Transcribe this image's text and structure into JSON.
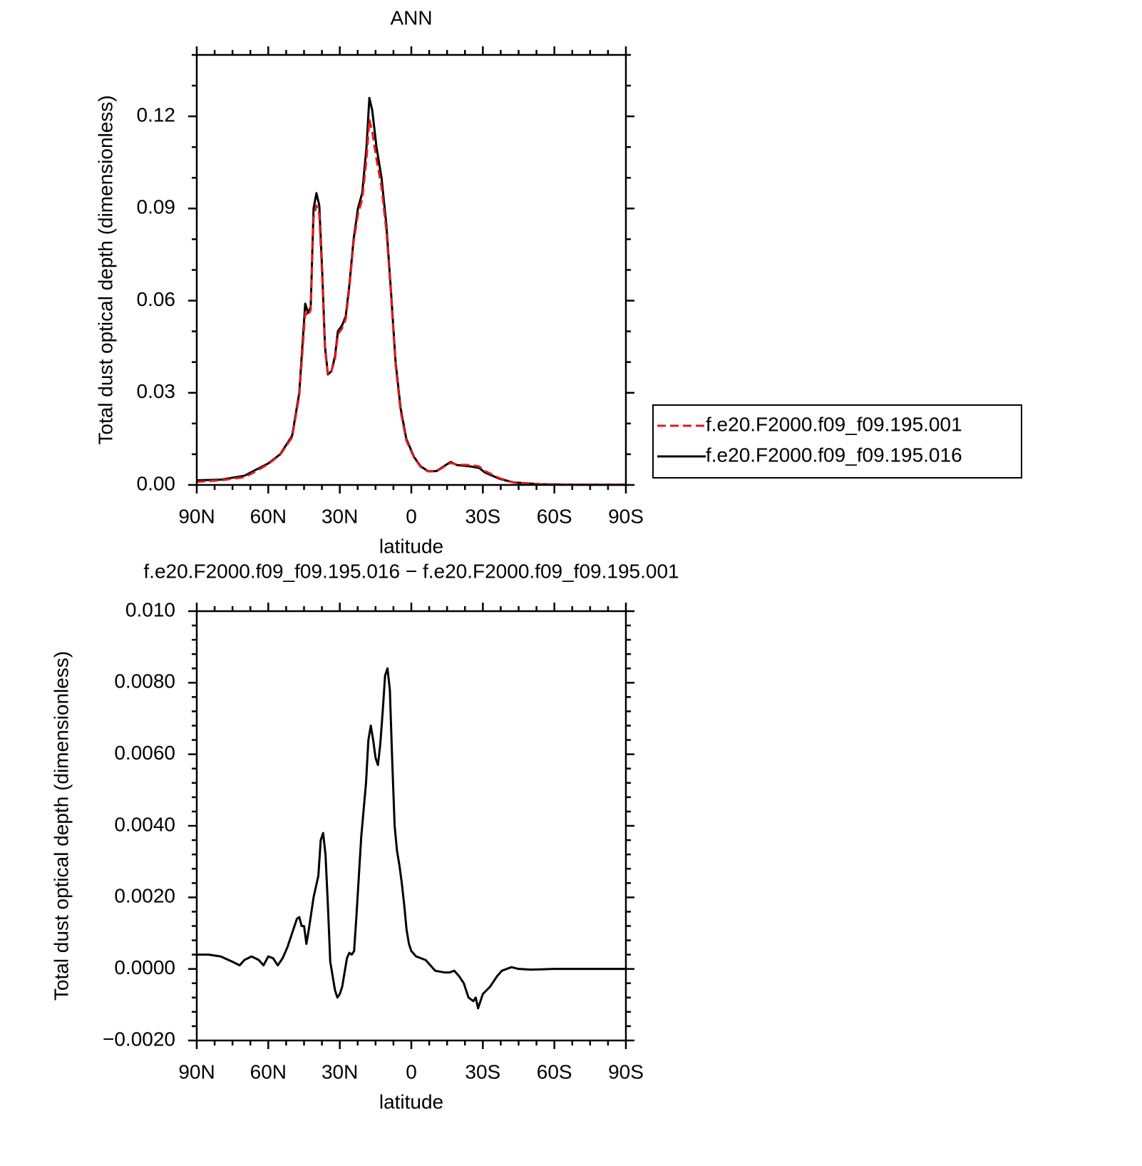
{
  "chart_data": [
    {
      "type": "line",
      "title": "ANN",
      "xlabel": "latitude",
      "ylabel": "Total dust optical depth (dimensionless)",
      "x": [
        90,
        80,
        70,
        65,
        60,
        55,
        50,
        47,
        44.5,
        43.3,
        42.2,
        41,
        39.8,
        38.6,
        37.4,
        36.2,
        35,
        33.5,
        32,
        30.8,
        29,
        27.5,
        26,
        24.2,
        22.4,
        20.6,
        18.8,
        17.6,
        16.4,
        14.6,
        12.5,
        10.5,
        8.7,
        6.6,
        4.5,
        2.1,
        -1.2,
        -4,
        -7,
        -10.5,
        -13.5,
        -16.5,
        -19,
        -25,
        -28.5,
        -31,
        -37,
        -43,
        -55,
        -70,
        -90
      ],
      "series": [
        {
          "name": "f.e20.F2000.f09_f09.195.001",
          "color": "#e41a1c",
          "dash": true,
          "values": [
            0.001,
            0.0015,
            0.0025,
            0.0045,
            0.0068,
            0.0098,
            0.0155,
            0.029,
            0.056,
            0.055,
            0.057,
            0.087,
            0.091,
            0.088,
            0.068,
            0.044,
            0.036,
            0.037,
            0.041,
            0.049,
            0.051,
            0.054,
            0.064,
            0.079,
            0.088,
            0.093,
            0.106,
            0.119,
            0.115,
            0.106,
            0.097,
            0.083,
            0.064,
            0.039,
            0.024,
            0.0145,
            0.0088,
            0.0058,
            0.0044,
            0.0044,
            0.0058,
            0.0072,
            0.0066,
            0.0065,
            0.006,
            0.0045,
            0.0022,
            0.0008,
            0.0002,
            0.0001,
            0.0001
          ]
        },
        {
          "name": "f.e20.F2000.f09_f09.195.016",
          "color": "#000000",
          "dash": false,
          "values": [
            0.0015,
            0.0017,
            0.003,
            0.005,
            0.007,
            0.01,
            0.016,
            0.03,
            0.059,
            0.056,
            0.058,
            0.09,
            0.095,
            0.091,
            0.07,
            0.045,
            0.036,
            0.037,
            0.042,
            0.05,
            0.052,
            0.055,
            0.065,
            0.08,
            0.09,
            0.095,
            0.11,
            0.126,
            0.122,
            0.11,
            0.1,
            0.085,
            0.065,
            0.04,
            0.025,
            0.015,
            0.009,
            0.006,
            0.0045,
            0.0045,
            0.006,
            0.0075,
            0.0065,
            0.006,
            0.0055,
            0.004,
            0.002,
            0.0008,
            0.0002,
            0.0001,
            0.0001
          ]
        }
      ],
      "xlim": [
        90,
        -90
      ],
      "xticks": [
        {
          "value": 90,
          "label": "90N"
        },
        {
          "value": 60,
          "label": "60N"
        },
        {
          "value": 30,
          "label": "30N"
        },
        0,
        {
          "value": -30,
          "label": "30S"
        },
        {
          "value": -60,
          "label": "60S"
        },
        {
          "value": -90,
          "label": "90S"
        }
      ],
      "ylim": [
        0,
        0.14
      ],
      "yticks": [
        {
          "value": 0,
          "label": "0.00"
        },
        0.03,
        0.06,
        0.09,
        0.12
      ],
      "legend": "right"
    },
    {
      "type": "line",
      "title": "f.e20.F2000.f09_f09.195.016 − f.e20.F2000.f09_f09.195.001",
      "xlabel": "latitude",
      "ylabel": "Total dust optical depth (dimensionless)",
      "x": [
        90,
        85,
        80,
        75,
        72,
        70,
        67,
        64,
        62,
        60,
        58,
        56,
        54,
        52,
        50,
        48,
        47,
        46,
        45,
        44,
        43,
        41,
        39,
        38,
        37,
        36,
        35,
        34,
        33,
        32,
        31,
        30,
        29,
        28,
        27,
        26,
        25,
        24,
        23,
        22,
        21,
        19,
        18,
        17,
        16,
        15,
        14,
        13,
        12,
        11,
        10,
        9,
        8,
        7,
        6,
        5,
        4,
        3,
        2,
        1,
        0,
        -2,
        -4,
        -6,
        -8,
        -10,
        -14,
        -16,
        -18,
        -20,
        -22,
        -24,
        -26,
        -27,
        -28,
        -30,
        -33,
        -36,
        -38,
        -40,
        -42,
        -45,
        -50,
        -60,
        -90
      ],
      "values": [
        0.0004,
        0.0004,
        0.00035,
        0.0002,
        0.0001,
        0.00025,
        0.00035,
        0.00025,
        0.0001,
        0.00035,
        0.0003,
        0.0001,
        0.0003,
        0.0006,
        0.001,
        0.0014,
        0.00145,
        0.0012,
        0.0012,
        0.0007,
        0.0011,
        0.002,
        0.0026,
        0.0036,
        0.0038,
        0.0032,
        0.0018,
        0.0002,
        -0.0002,
        -0.0006,
        -0.0008,
        -0.0007,
        -0.0005,
        -0.0001,
        0.0003,
        0.00045,
        0.0004,
        0.0005,
        0.0015,
        0.0026,
        0.0037,
        0.0052,
        0.0064,
        0.0068,
        0.0064,
        0.0059,
        0.0057,
        0.0063,
        0.0072,
        0.0082,
        0.0084,
        0.0078,
        0.0058,
        0.004,
        0.0033,
        0.0029,
        0.0024,
        0.0018,
        0.0011,
        0.0007,
        0.0005,
        0.00035,
        0.0003,
        0.00025,
        0.0001,
        -5e-05,
        -0.0001,
        -0.0001,
        -5e-05,
        -0.0002,
        -0.0004,
        -0.0008,
        -0.0009,
        -0.0008,
        -0.0011,
        -0.0007,
        -0.0005,
        -0.0002,
        -5e-05,
        0,
        5e-05,
        0,
        -2e-05,
        0,
        0
      ],
      "color": "#000000",
      "xlim": [
        90,
        -90
      ],
      "xticks": [
        {
          "value": 90,
          "label": "90N"
        },
        {
          "value": 60,
          "label": "60N"
        },
        {
          "value": 30,
          "label": "30N"
        },
        0,
        {
          "value": -30,
          "label": "30S"
        },
        {
          "value": -60,
          "label": "60S"
        },
        {
          "value": -90,
          "label": "90S"
        }
      ],
      "ylim": [
        -0.002,
        0.01
      ],
      "yticks": [
        {
          "value": -0.002,
          "label": "−0.0020"
        },
        {
          "value": 0,
          "label": "0.0000"
        },
        {
          "value": 0.002,
          "label": "0.0020"
        },
        {
          "value": 0.004,
          "label": "0.0040"
        },
        {
          "value": 0.006,
          "label": "0.0060"
        },
        {
          "value": 0.008,
          "label": "0.0080"
        },
        {
          "value": 0.01,
          "label": "0.010"
        }
      ]
    }
  ]
}
